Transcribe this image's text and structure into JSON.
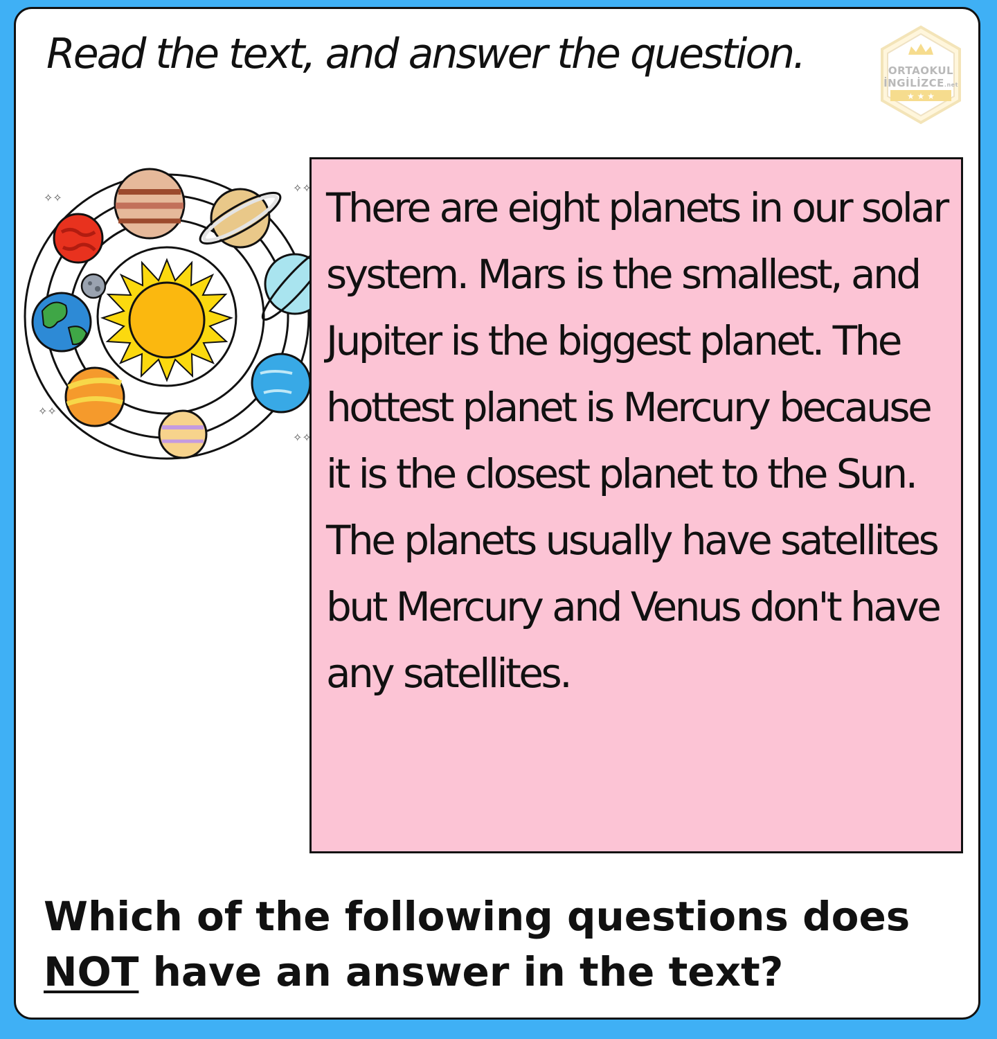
{
  "instruction": "Read the text, and answer the question.",
  "logo": {
    "line1": "ORTAOKUL",
    "line2": "İNGİLİZCE",
    "suffix": ".net"
  },
  "illustration": {
    "icon": "solar-system-icon"
  },
  "reading": {
    "text": "There are eight planets in our solar system. Mars is the smallest, and Jupiter is the biggest planet. The hottest planet is Mercury because it is the closest planet to the Sun. The planets usually have satellites but Mercury and Venus don't have any satellites."
  },
  "question": {
    "part1": "Which of the following questions does",
    "emphasis": "NOT",
    "part2": " have an answer in the text?"
  },
  "colors": {
    "frame": "#3fb0f5",
    "reading_box": "#fcc4d5",
    "sun": "#fbb80f"
  }
}
